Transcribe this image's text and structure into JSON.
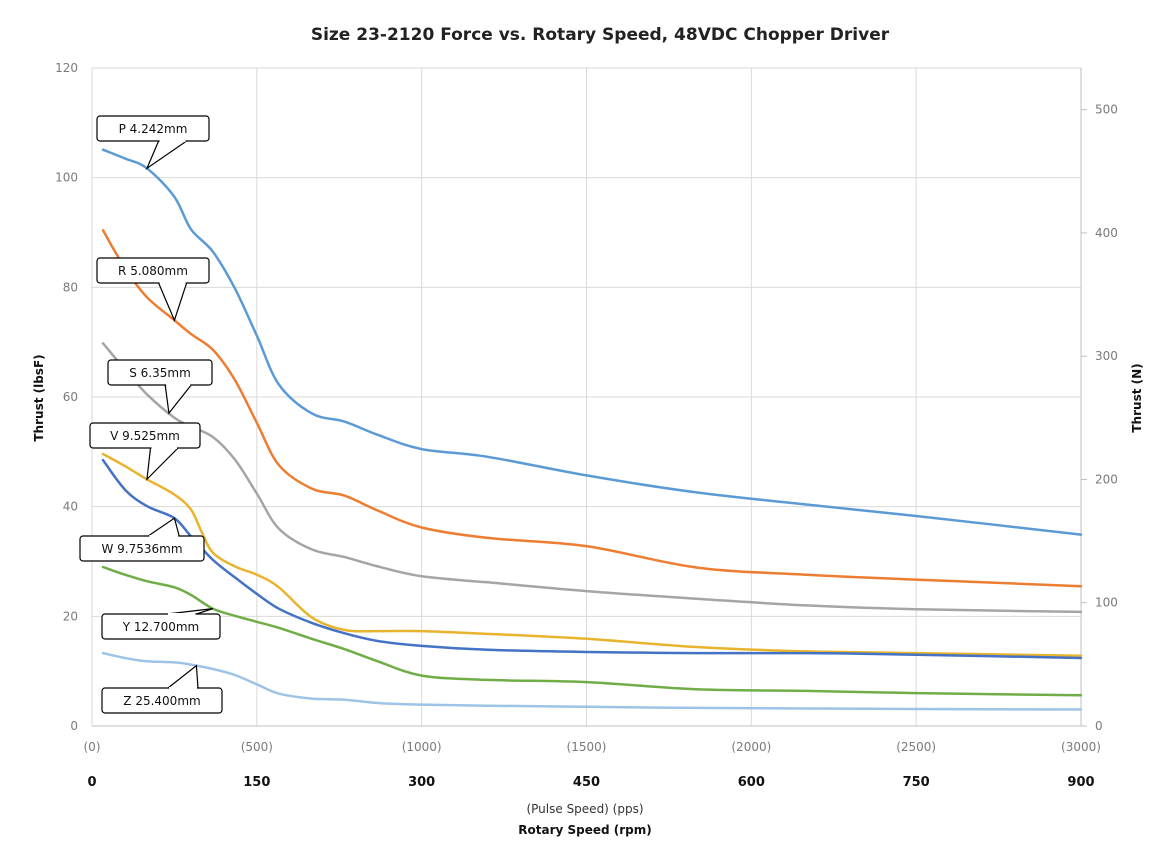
{
  "chart_data": {
    "type": "line",
    "title": "Size 23-2120 Force vs. Rotary Speed, 48VDC Chopper Driver",
    "ylabel": "Thrust (lbsF)",
    "y2label": "Thrust (N)",
    "xlabel_primary": "Rotary Speed (rpm)",
    "xlabel_secondary": "(Pulse Speed) (pps)",
    "ylim": [
      0,
      120
    ],
    "y2lim": [
      0,
      533.8
    ],
    "xlim": [
      0,
      900
    ],
    "grid": true,
    "legend": "callouts",
    "y_ticks": [
      "0",
      "20",
      "40",
      "60",
      "80",
      "100",
      "120"
    ],
    "y2_ticks": [
      "0",
      "100",
      "200",
      "300",
      "400",
      "500"
    ],
    "x_ticks_rpm": [
      "0",
      "150",
      "300",
      "450",
      "600",
      "750",
      "900"
    ],
    "x_ticks_pps": [
      "(0)",
      "(500)",
      "(1000)",
      "(1500)",
      "(2000)",
      "(2500)",
      "(3000)"
    ],
    "series": [
      {
        "name": "P 4.242mm",
        "color": "#5B9BD5",
        "x": [
          10,
          30,
          50,
          75,
          90,
          110,
          130,
          150,
          170,
          200,
          230,
          260,
          300,
          360,
          450,
          550,
          650,
          750,
          900
        ],
        "y": [
          105.1,
          103.5,
          101.7,
          96.5,
          90.6,
          86.5,
          79.8,
          71.2,
          62.3,
          57.0,
          55.5,
          53.1,
          50.5,
          49.1,
          45.7,
          42.6,
          40.4,
          38.3,
          34.9
        ]
      },
      {
        "name": "R 5.080mm",
        "color": "#ED7D31",
        "x": [
          10,
          30,
          50,
          75,
          90,
          110,
          130,
          150,
          170,
          200,
          230,
          260,
          300,
          360,
          450,
          550,
          650,
          750,
          900
        ],
        "y": [
          90.4,
          83.5,
          78.2,
          74.0,
          71.5,
          68.6,
          63.1,
          55.3,
          47.6,
          43.3,
          42.0,
          39.3,
          36.2,
          34.3,
          32.8,
          28.9,
          27.6,
          26.7,
          25.5
        ]
      },
      {
        "name": "S 6.35mm",
        "color": "#A5A5A5",
        "x": [
          10,
          30,
          50,
          75,
          90,
          110,
          130,
          150,
          170,
          200,
          230,
          260,
          300,
          360,
          450,
          550,
          650,
          750,
          900
        ],
        "y": [
          69.8,
          65.0,
          60.5,
          56.2,
          54.6,
          52.7,
          48.6,
          42.4,
          36.0,
          32.2,
          30.8,
          29.1,
          27.3,
          26.2,
          24.6,
          23.2,
          22.0,
          21.3,
          20.8
        ]
      },
      {
        "name": "V 9.525mm",
        "color": "#E9B42D",
        "x": [
          10,
          30,
          50,
          75,
          90,
          100,
          110,
          130,
          150,
          170,
          200,
          230,
          260,
          300,
          360,
          450,
          550,
          650,
          750,
          900
        ],
        "y": [
          49.6,
          47.4,
          45.0,
          42.2,
          39.5,
          35.3,
          31.6,
          29.1,
          27.6,
          25.3,
          19.8,
          17.5,
          17.3,
          17.3,
          16.8,
          15.9,
          14.4,
          13.6,
          13.3,
          12.8
        ]
      },
      {
        "name": "W 9.7536mm",
        "color": "#4472C4",
        "x": [
          10,
          30,
          50,
          75,
          90,
          110,
          130,
          150,
          170,
          200,
          230,
          260,
          300,
          360,
          450,
          550,
          650,
          750,
          900
        ],
        "y": [
          48.5,
          43.1,
          40.1,
          37.9,
          34.6,
          30.3,
          27.1,
          24.1,
          21.4,
          18.8,
          16.9,
          15.5,
          14.6,
          13.9,
          13.5,
          13.3,
          13.3,
          13.0,
          12.4
        ]
      },
      {
        "name": "Y 12.700mm",
        "color": "#70AD47",
        "x": [
          10,
          30,
          50,
          75,
          90,
          110,
          130,
          150,
          170,
          200,
          230,
          260,
          300,
          360,
          450,
          550,
          650,
          750,
          900
        ],
        "y": [
          29.0,
          27.6,
          26.4,
          25.3,
          23.9,
          21.4,
          20.1,
          19.0,
          17.9,
          15.9,
          14.0,
          11.8,
          9.2,
          8.4,
          8.0,
          6.7,
          6.4,
          6.0,
          5.6
        ]
      },
      {
        "name": "Z 25.400mm",
        "color": "#9DC3E6",
        "x": [
          10,
          30,
          50,
          75,
          90,
          110,
          130,
          150,
          170,
          200,
          230,
          260,
          300,
          360,
          450,
          550,
          650,
          750,
          900
        ],
        "y": [
          13.3,
          12.4,
          11.8,
          11.6,
          11.2,
          10.4,
          9.3,
          7.6,
          5.9,
          5.0,
          4.8,
          4.2,
          3.9,
          3.7,
          3.5,
          3.3,
          3.2,
          3.1,
          3.0
        ]
      }
    ],
    "callouts": [
      {
        "text": "P 4.242mm",
        "series": "P 4.242mm"
      },
      {
        "text": "R 5.080mm",
        "series": "R 5.080mm"
      },
      {
        "text": "S 6.35mm",
        "series": "S 6.35mm"
      },
      {
        "text": "V 9.525mm",
        "series": "V 9.525mm"
      },
      {
        "text": "W 9.7536mm",
        "series": "W 9.7536mm"
      },
      {
        "text": "Y 12.700mm",
        "series": "Y 12.700mm"
      },
      {
        "text": "Z 25.400mm",
        "series": "Z 25.400mm"
      }
    ]
  }
}
